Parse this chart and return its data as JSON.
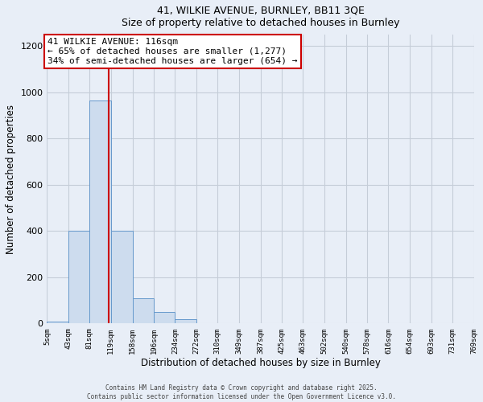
{
  "title_line1": "41, WILKIE AVENUE, BURNLEY, BB11 3QE",
  "title_line2": "Size of property relative to detached houses in Burnley",
  "xlabel": "Distribution of detached houses by size in Burnley",
  "ylabel": "Number of detached properties",
  "bar_edges": [
    5,
    43,
    81,
    119,
    158,
    196,
    234,
    272,
    310,
    349,
    387,
    425,
    463,
    502,
    540,
    578,
    616,
    654,
    693,
    731,
    769
  ],
  "bar_heights": [
    10,
    400,
    965,
    400,
    110,
    50,
    20,
    0,
    0,
    0,
    0,
    0,
    0,
    0,
    0,
    0,
    0,
    0,
    0,
    0
  ],
  "bar_color": "#cddcee",
  "bar_edge_color": "#6699cc",
  "property_line_x": 116,
  "property_line_color": "#cc0000",
  "annotation_title": "41 WILKIE AVENUE: 116sqm",
  "annotation_line1": "← 65% of detached houses are smaller (1,277)",
  "annotation_line2": "34% of semi-detached houses are larger (654) →",
  "annotation_box_color": "#ffffff",
  "annotation_box_edge_color": "#cc0000",
  "ylim": [
    0,
    1250
  ],
  "yticks": [
    0,
    200,
    400,
    600,
    800,
    1000,
    1200
  ],
  "tick_labels": [
    "5sqm",
    "43sqm",
    "81sqm",
    "119sqm",
    "158sqm",
    "196sqm",
    "234sqm",
    "272sqm",
    "310sqm",
    "349sqm",
    "387sqm",
    "425sqm",
    "463sqm",
    "502sqm",
    "540sqm",
    "578sqm",
    "616sqm",
    "654sqm",
    "693sqm",
    "731sqm",
    "769sqm"
  ],
  "footer_line1": "Contains HM Land Registry data © Crown copyright and database right 2025.",
  "footer_line2": "Contains public sector information licensed under the Open Government Licence v3.0.",
  "bg_color": "#e8eef7",
  "plot_bg_color": "#e8eef7",
  "grid_color": "#c5cdd8"
}
